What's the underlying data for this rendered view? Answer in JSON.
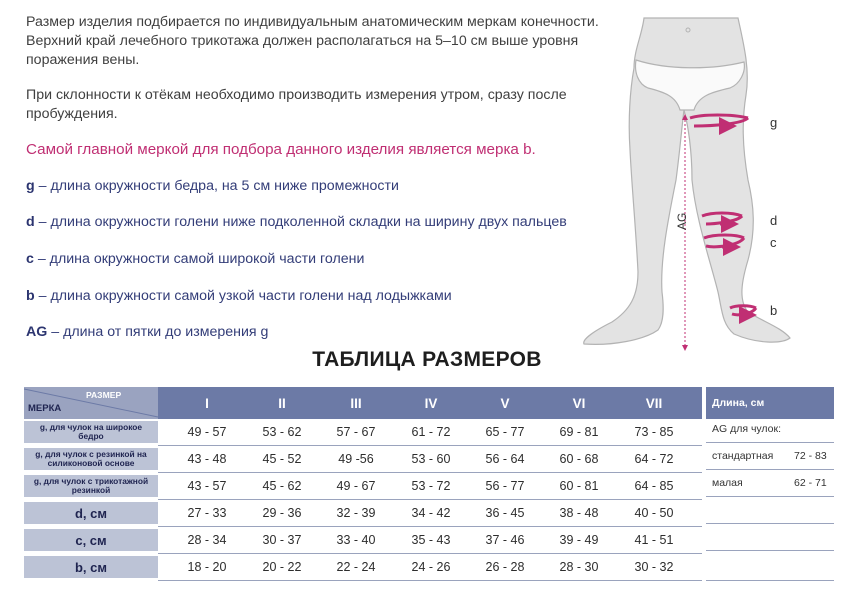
{
  "intro": {
    "paragraph1": "Размер изделия подбирается по индивидуальным анатомическим меркам конечности. Верхний край лечебного трикотажа должен располагаться на 5–10 см выше уровня поражения вены.",
    "paragraph2": "При склонности к отёкам необходимо производить измерения утром, сразу после пробуждения.",
    "highlight": "Самой главной меркой для подбора данного изделия является мерка b."
  },
  "definitions": [
    {
      "key": "g",
      "text": "– длина окружности бедра, на 5 см ниже промежности"
    },
    {
      "key": "d",
      "text": "– длина окружности голени ниже подколенной складки на ширину двух пальцев"
    },
    {
      "key": "c",
      "text": "– длина окружности самой широкой части голени"
    },
    {
      "key": "b",
      "text": "– длина окружности самой узкой части голени над лодыжками"
    },
    {
      "key": "AG",
      "text": "– длина от пятки до измерения g"
    }
  ],
  "figure_labels": {
    "g": "g",
    "d": "d",
    "c": "c",
    "b": "b",
    "ag": "AG"
  },
  "colors": {
    "accent": "#c02f73",
    "header": "#6c7aa6",
    "rowhead": "#bcc3d6",
    "navy": "#2c3570"
  },
  "table": {
    "title": "ТАБЛИЦА РАЗМЕРОВ",
    "corner_size": "РАЗМЕР",
    "corner_measure": "МЕРКА",
    "sizes": [
      "I",
      "II",
      "III",
      "IV",
      "V",
      "VI",
      "VII"
    ],
    "rows": [
      {
        "label": "g, для чулок на широкое бедро",
        "values": [
          "49 - 57",
          "53 - 62",
          "57 - 67",
          "61 - 72",
          "65 - 77",
          "69 - 81",
          "73 - 85"
        ]
      },
      {
        "label": "g, для чулок с резинкой на силиконовой основе",
        "values": [
          "43 - 48",
          "45 - 52",
          "49 -56",
          "53 - 60",
          "56 - 64",
          "60 - 68",
          "64 - 72"
        ]
      },
      {
        "label": "g, для чулок с трикотажной резинкой",
        "values": [
          "43 - 57",
          "45 - 62",
          "49 - 67",
          "53 - 72",
          "56 - 77",
          "60 - 81",
          "64 - 85"
        ]
      },
      {
        "label": "d, см",
        "values": [
          "27 - 33",
          "29 - 36",
          "32 - 39",
          "34 - 42",
          "36 - 45",
          "38 - 48",
          "40 - 50"
        ]
      },
      {
        "label": "c, см",
        "values": [
          "28 - 34",
          "30 - 37",
          "33 - 40",
          "35 - 43",
          "37 - 46",
          "39 - 49",
          "41 - 51"
        ]
      },
      {
        "label": "b, см",
        "values": [
          "18 - 20",
          "20 - 22",
          "22 - 24",
          "24 - 26",
          "26 - 28",
          "28 - 30",
          "30 - 32"
        ]
      }
    ]
  },
  "length_panel": {
    "header": "Длина, см",
    "subtitle": "AG для чулок:",
    "items": [
      {
        "label": "стандартная",
        "value": "72 - 83"
      },
      {
        "label": "малая",
        "value": "62 - 71"
      }
    ]
  }
}
